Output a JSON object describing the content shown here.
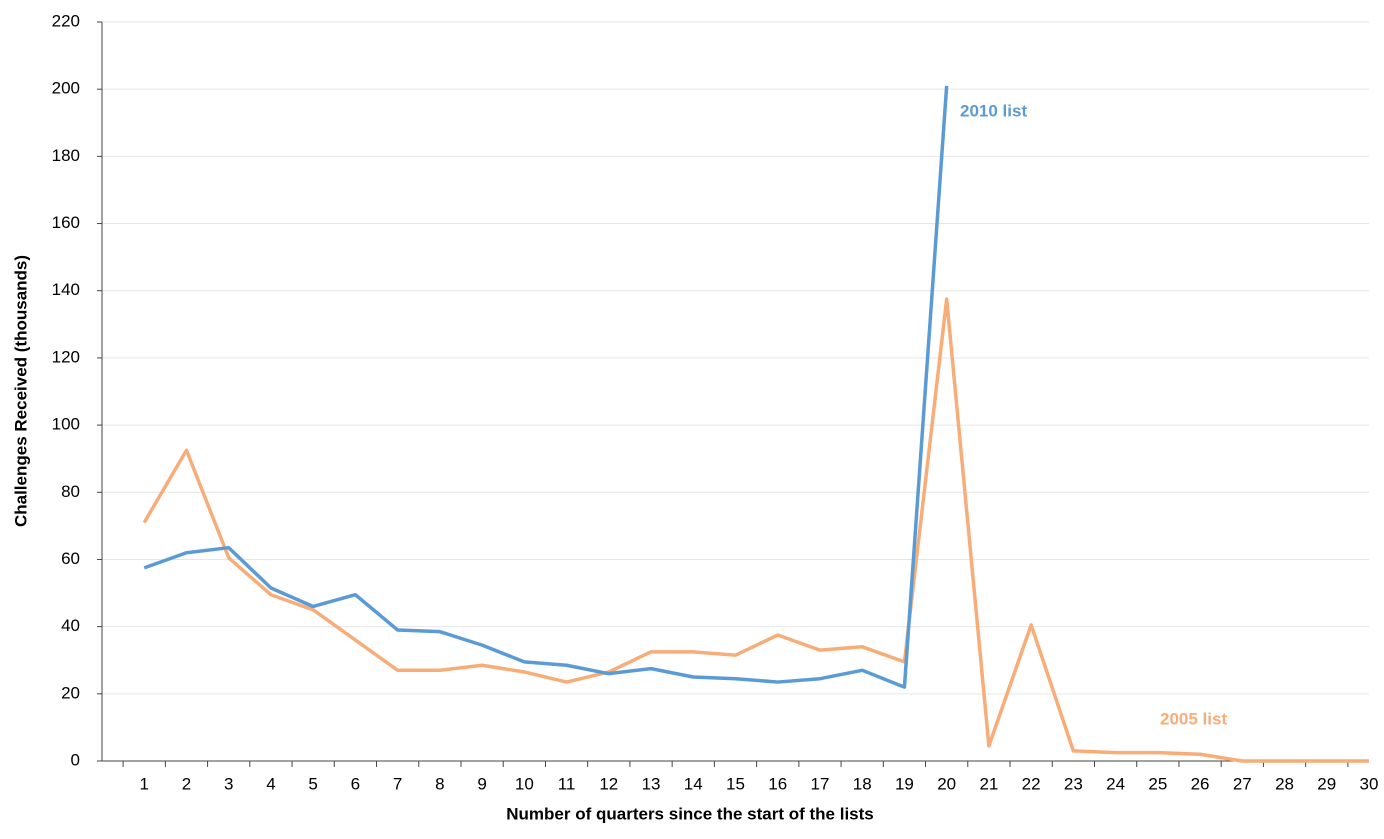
{
  "chart_data": {
    "type": "line",
    "xlabel": "Number of quarters since the start of the lists",
    "ylabel": "Challenges Received (thousands)",
    "x": [
      1,
      2,
      3,
      4,
      5,
      6,
      7,
      8,
      9,
      10,
      11,
      12,
      13,
      14,
      15,
      16,
      17,
      18,
      19,
      20,
      21,
      22,
      23,
      24,
      25,
      26,
      27,
      28,
      29,
      30
    ],
    "series": [
      {
        "name": "2010 list",
        "color": "#5b9bd5",
        "values": [
          57.5,
          62,
          63.5,
          51.5,
          46,
          49.5,
          39,
          38.5,
          34.5,
          29.5,
          28.5,
          26,
          27.5,
          25,
          24.5,
          23.5,
          24.5,
          27,
          22,
          201,
          null,
          null,
          null,
          null,
          null,
          null,
          null,
          null,
          null,
          null
        ]
      },
      {
        "name": "2005 list",
        "color": "#f8ad78",
        "values": [
          71,
          92.5,
          60.5,
          49.5,
          45,
          36,
          27,
          27,
          28.5,
          26.5,
          23.5,
          26.5,
          32.5,
          32.5,
          31.5,
          37.5,
          33,
          34,
          29.5,
          137.5,
          4.5,
          40.5,
          3,
          2.5,
          2.5,
          2,
          0,
          0,
          0,
          0
        ]
      }
    ],
    "xlim": [
      0,
      30
    ],
    "xticks": [
      1,
      2,
      3,
      4,
      5,
      6,
      7,
      8,
      9,
      10,
      11,
      12,
      13,
      14,
      15,
      16,
      17,
      18,
      19,
      20,
      21,
      22,
      23,
      24,
      25,
      26,
      27,
      28,
      29,
      30
    ],
    "ylim": [
      0,
      220
    ],
    "yticks": [
      0,
      20,
      40,
      60,
      80,
      100,
      120,
      140,
      160,
      180,
      200,
      220
    ],
    "grid": true
  }
}
